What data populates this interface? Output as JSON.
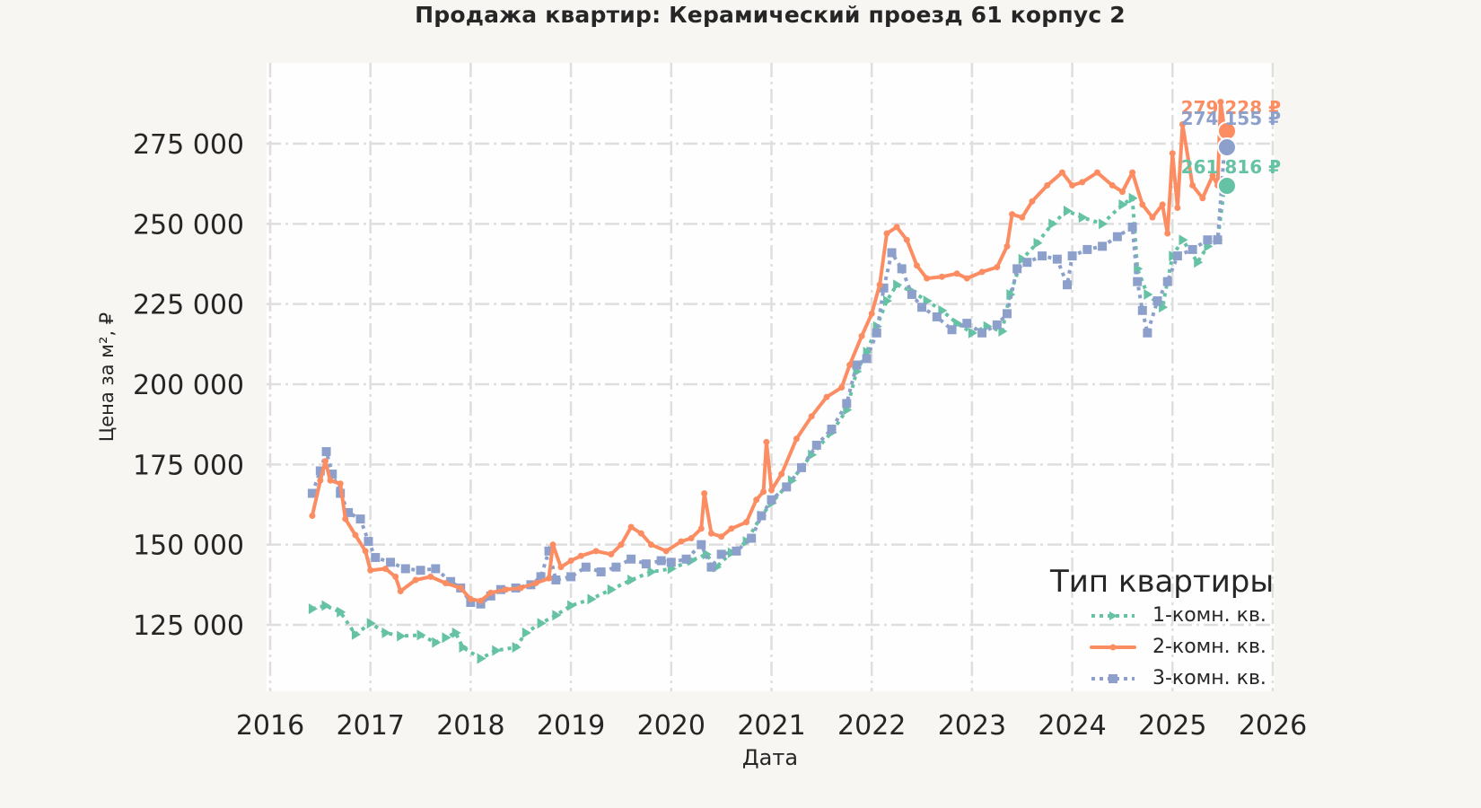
{
  "title": "Продажа квартир: Керамический проезд 61 корпус 2",
  "axes": {
    "xlabel": "Дата",
    "ylabel": "Цена за м², ₽"
  },
  "legend": {
    "title": "Тип квартиры",
    "items": [
      {
        "label": "1-комн. кв.",
        "color": "#66c2a5",
        "style": "dotted",
        "marker": "triangle-right"
      },
      {
        "label": "2-комн. кв.",
        "color": "#fc8d62",
        "style": "solid",
        "marker": "circle"
      },
      {
        "label": "3-комн. кв.",
        "color": "#8da0cb",
        "style": "dotted",
        "marker": "square"
      }
    ]
  },
  "end_labels": [
    {
      "series": "2-комн. кв.",
      "text": "279 228 ₽",
      "color": "#fc8d62"
    },
    {
      "series": "3-комн. кв.",
      "text": "274 155 ₽",
      "color": "#8da0cb"
    },
    {
      "series": "1-комн. кв.",
      "text": "261 816 ₽",
      "color": "#66c2a5"
    }
  ],
  "chart_data": {
    "type": "line",
    "title": "Продажа квартир: Керамический проезд 61 корпус 2",
    "xlabel": "Дата",
    "ylabel": "Цена за м², ₽",
    "xlim": [
      2016,
      2026
    ],
    "ylim": [
      107000,
      300000
    ],
    "x_ticks": [
      "2016",
      "2017",
      "2018",
      "2019",
      "2020",
      "2021",
      "2022",
      "2023",
      "2024",
      "2025",
      "2026"
    ],
    "y_ticks": [
      "125 000",
      "150 000",
      "175 000",
      "200 000",
      "225 000",
      "250 000",
      "275 000"
    ],
    "grid": true,
    "legend_position": "lower right",
    "series": [
      {
        "name": "1-комн. кв.",
        "color": "#66c2a5",
        "final_value": 261816,
        "points": [
          [
            2016.42,
            130000
          ],
          [
            2016.55,
            131000
          ],
          [
            2016.7,
            129000
          ],
          [
            2016.85,
            122000
          ],
          [
            2017.0,
            125500
          ],
          [
            2017.15,
            122500
          ],
          [
            2017.3,
            121500
          ],
          [
            2017.5,
            121800
          ],
          [
            2017.65,
            119500
          ],
          [
            2017.75,
            121000
          ],
          [
            2017.85,
            122500
          ],
          [
            2017.92,
            118000
          ],
          [
            2018.1,
            114500
          ],
          [
            2018.25,
            117000
          ],
          [
            2018.45,
            118000
          ],
          [
            2018.55,
            122500
          ],
          [
            2018.7,
            125500
          ],
          [
            2018.85,
            128000
          ],
          [
            2019.0,
            131000
          ],
          [
            2019.2,
            133000
          ],
          [
            2019.4,
            136000
          ],
          [
            2019.6,
            139000
          ],
          [
            2019.8,
            141500
          ],
          [
            2020.0,
            142500
          ],
          [
            2020.2,
            145000
          ],
          [
            2020.35,
            147000
          ],
          [
            2020.45,
            143000
          ],
          [
            2020.6,
            147500
          ],
          [
            2020.75,
            151000
          ],
          [
            2020.9,
            159000
          ],
          [
            2021.0,
            163000
          ],
          [
            2021.2,
            170000
          ],
          [
            2021.4,
            178000
          ],
          [
            2021.6,
            185000
          ],
          [
            2021.75,
            192000
          ],
          [
            2021.85,
            204000
          ],
          [
            2021.95,
            210000
          ],
          [
            2022.05,
            218000
          ],
          [
            2022.15,
            226000
          ],
          [
            2022.25,
            231000
          ],
          [
            2022.4,
            229000
          ],
          [
            2022.55,
            226000
          ],
          [
            2022.7,
            223000
          ],
          [
            2022.85,
            219000
          ],
          [
            2023.0,
            216000
          ],
          [
            2023.15,
            218000
          ],
          [
            2023.3,
            216500
          ],
          [
            2023.38,
            228000
          ],
          [
            2023.5,
            239000
          ],
          [
            2023.65,
            244000
          ],
          [
            2023.8,
            250000
          ],
          [
            2023.95,
            254000
          ],
          [
            2024.1,
            252000
          ],
          [
            2024.3,
            250000
          ],
          [
            2024.5,
            256000
          ],
          [
            2024.6,
            258000
          ],
          [
            2024.65,
            236000
          ],
          [
            2024.75,
            228000
          ],
          [
            2024.9,
            224000
          ],
          [
            2025.0,
            240000
          ],
          [
            2025.1,
            245000
          ],
          [
            2025.25,
            238000
          ],
          [
            2025.35,
            243000
          ],
          [
            2025.45,
            245000
          ],
          [
            2025.52,
            261816
          ]
        ]
      },
      {
        "name": "2-комн. кв.",
        "color": "#fc8d62",
        "final_value": 279228,
        "points": [
          [
            2016.42,
            159000
          ],
          [
            2016.5,
            170000
          ],
          [
            2016.55,
            176000
          ],
          [
            2016.6,
            170000
          ],
          [
            2016.7,
            169000
          ],
          [
            2016.75,
            158000
          ],
          [
            2016.85,
            153000
          ],
          [
            2016.95,
            148000
          ],
          [
            2017.0,
            142000
          ],
          [
            2017.15,
            142500
          ],
          [
            2017.25,
            140000
          ],
          [
            2017.3,
            135500
          ],
          [
            2017.45,
            139000
          ],
          [
            2017.6,
            140000
          ],
          [
            2017.75,
            138000
          ],
          [
            2017.9,
            136500
          ],
          [
            2018.0,
            133000
          ],
          [
            2018.1,
            132500
          ],
          [
            2018.2,
            135000
          ],
          [
            2018.35,
            136000
          ],
          [
            2018.5,
            136500
          ],
          [
            2018.65,
            138000
          ],
          [
            2018.78,
            139500
          ],
          [
            2018.82,
            150000
          ],
          [
            2018.9,
            143000
          ],
          [
            2019.0,
            145000
          ],
          [
            2019.1,
            146500
          ],
          [
            2019.25,
            148000
          ],
          [
            2019.4,
            147000
          ],
          [
            2019.5,
            150000
          ],
          [
            2019.6,
            155500
          ],
          [
            2019.7,
            153500
          ],
          [
            2019.8,
            150000
          ],
          [
            2019.95,
            148000
          ],
          [
            2020.1,
            151000
          ],
          [
            2020.2,
            152000
          ],
          [
            2020.3,
            155000
          ],
          [
            2020.33,
            166000
          ],
          [
            2020.4,
            153500
          ],
          [
            2020.5,
            152500
          ],
          [
            2020.6,
            155000
          ],
          [
            2020.75,
            157000
          ],
          [
            2020.85,
            164000
          ],
          [
            2020.92,
            166500
          ],
          [
            2020.95,
            182000
          ],
          [
            2021.0,
            167000
          ],
          [
            2021.1,
            172000
          ],
          [
            2021.25,
            183000
          ],
          [
            2021.4,
            190000
          ],
          [
            2021.55,
            196000
          ],
          [
            2021.7,
            199000
          ],
          [
            2021.78,
            206000
          ],
          [
            2021.9,
            215000
          ],
          [
            2022.0,
            222000
          ],
          [
            2022.08,
            231000
          ],
          [
            2022.15,
            247000
          ],
          [
            2022.25,
            249000
          ],
          [
            2022.35,
            245000
          ],
          [
            2022.45,
            237000
          ],
          [
            2022.55,
            233000
          ],
          [
            2022.7,
            233500
          ],
          [
            2022.85,
            234500
          ],
          [
            2022.95,
            233000
          ],
          [
            2023.1,
            235000
          ],
          [
            2023.25,
            236500
          ],
          [
            2023.35,
            243000
          ],
          [
            2023.4,
            253000
          ],
          [
            2023.5,
            252000
          ],
          [
            2023.6,
            257000
          ],
          [
            2023.75,
            262000
          ],
          [
            2023.9,
            266000
          ],
          [
            2024.0,
            262000
          ],
          [
            2024.1,
            263000
          ],
          [
            2024.25,
            266000
          ],
          [
            2024.4,
            262000
          ],
          [
            2024.5,
            260000
          ],
          [
            2024.6,
            266000
          ],
          [
            2024.7,
            256000
          ],
          [
            2024.8,
            252000
          ],
          [
            2024.9,
            256000
          ],
          [
            2024.95,
            247000
          ],
          [
            2025.0,
            272000
          ],
          [
            2025.05,
            255000
          ],
          [
            2025.1,
            281000
          ],
          [
            2025.2,
            262000
          ],
          [
            2025.3,
            258000
          ],
          [
            2025.4,
            265000
          ],
          [
            2025.45,
            262000
          ],
          [
            2025.48,
            288000
          ],
          [
            2025.52,
            279228
          ]
        ]
      },
      {
        "name": "3-комн. кв.",
        "color": "#8da0cb",
        "final_value": 274155,
        "points": [
          [
            2016.42,
            166000
          ],
          [
            2016.5,
            173000
          ],
          [
            2016.56,
            179000
          ],
          [
            2016.62,
            172000
          ],
          [
            2016.7,
            166000
          ],
          [
            2016.78,
            160000
          ],
          [
            2016.9,
            158000
          ],
          [
            2016.98,
            151000
          ],
          [
            2017.05,
            146000
          ],
          [
            2017.2,
            144500
          ],
          [
            2017.35,
            142500
          ],
          [
            2017.5,
            142000
          ],
          [
            2017.65,
            142500
          ],
          [
            2017.8,
            138500
          ],
          [
            2017.9,
            136500
          ],
          [
            2018.0,
            132000
          ],
          [
            2018.1,
            131500
          ],
          [
            2018.2,
            134000
          ],
          [
            2018.3,
            136000
          ],
          [
            2018.45,
            136500
          ],
          [
            2018.6,
            137500
          ],
          [
            2018.7,
            140000
          ],
          [
            2018.78,
            148000
          ],
          [
            2018.85,
            139000
          ],
          [
            2019.0,
            140000
          ],
          [
            2019.15,
            143000
          ],
          [
            2019.3,
            141500
          ],
          [
            2019.45,
            143000
          ],
          [
            2019.6,
            145500
          ],
          [
            2019.75,
            144000
          ],
          [
            2019.9,
            145000
          ],
          [
            2020.0,
            144500
          ],
          [
            2020.15,
            145500
          ],
          [
            2020.3,
            150000
          ],
          [
            2020.4,
            143000
          ],
          [
            2020.5,
            147000
          ],
          [
            2020.65,
            148000
          ],
          [
            2020.8,
            152000
          ],
          [
            2020.9,
            159000
          ],
          [
            2021.0,
            164000
          ],
          [
            2021.15,
            168000
          ],
          [
            2021.3,
            174000
          ],
          [
            2021.45,
            181000
          ],
          [
            2021.6,
            186000
          ],
          [
            2021.75,
            194000
          ],
          [
            2021.85,
            206000
          ],
          [
            2021.95,
            208000
          ],
          [
            2022.05,
            216000
          ],
          [
            2022.12,
            230000
          ],
          [
            2022.2,
            241000
          ],
          [
            2022.3,
            236000
          ],
          [
            2022.4,
            228000
          ],
          [
            2022.5,
            224000
          ],
          [
            2022.65,
            221000
          ],
          [
            2022.8,
            217000
          ],
          [
            2022.95,
            219000
          ],
          [
            2023.1,
            216000
          ],
          [
            2023.25,
            218500
          ],
          [
            2023.35,
            222000
          ],
          [
            2023.45,
            236000
          ],
          [
            2023.55,
            238000
          ],
          [
            2023.7,
            240000
          ],
          [
            2023.85,
            239000
          ],
          [
            2023.95,
            231000
          ],
          [
            2024.0,
            240000
          ],
          [
            2024.15,
            242000
          ],
          [
            2024.3,
            243000
          ],
          [
            2024.45,
            246000
          ],
          [
            2024.6,
            249000
          ],
          [
            2024.65,
            232000
          ],
          [
            2024.7,
            223000
          ],
          [
            2024.75,
            216000
          ],
          [
            2024.85,
            226000
          ],
          [
            2024.95,
            232000
          ],
          [
            2025.05,
            240000
          ],
          [
            2025.2,
            242000
          ],
          [
            2025.35,
            245000
          ],
          [
            2025.45,
            245000
          ],
          [
            2025.52,
            274155
          ]
        ]
      }
    ]
  }
}
